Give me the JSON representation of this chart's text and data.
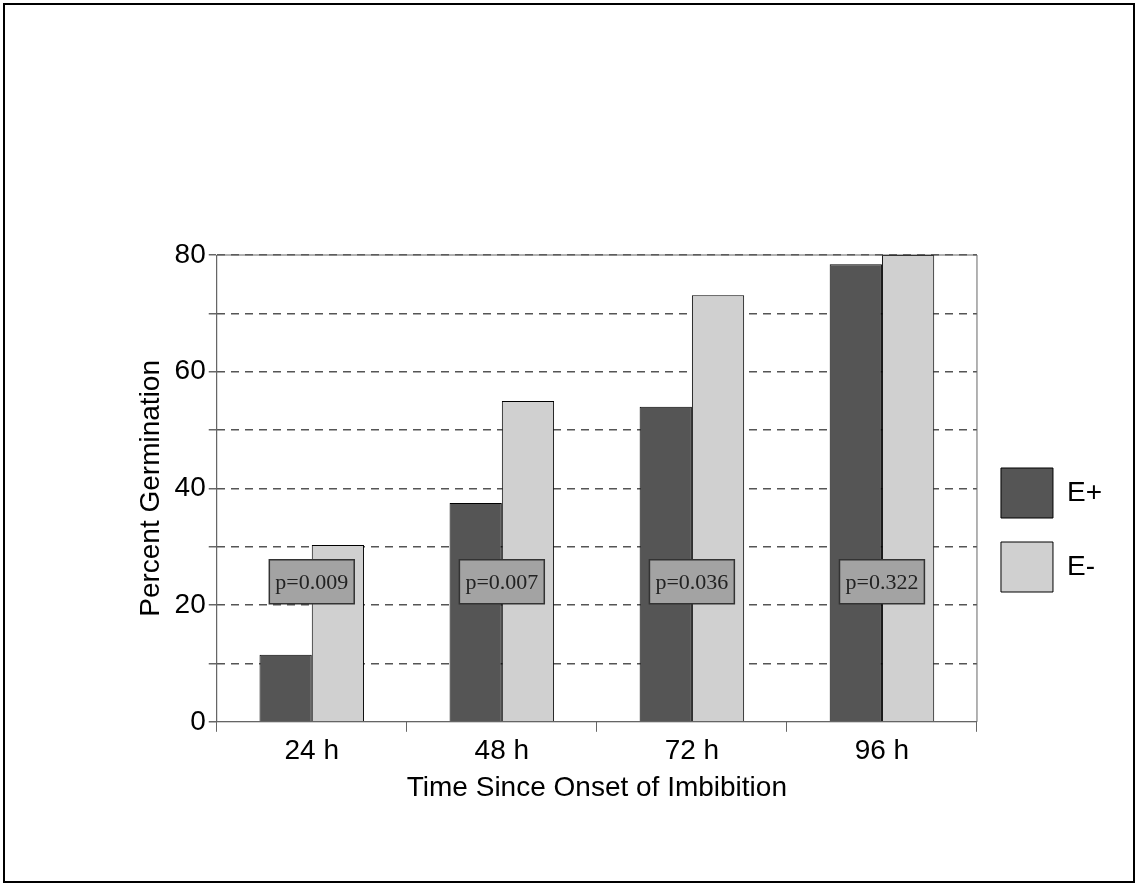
{
  "chart_data": {
    "type": "bar",
    "xlabel": "Time Since Onset of Imbibition",
    "ylabel": "Percent Germination",
    "categories": [
      "24 h",
      "48 h",
      "72 h",
      "96 h"
    ],
    "series": [
      {
        "name": "E+",
        "color": "#555555",
        "values": [
          11.5,
          37.5,
          54,
          78.4
        ]
      },
      {
        "name": "E-",
        "color": "#d0d0d0",
        "values": [
          30.3,
          55,
          73.1,
          80
        ]
      }
    ],
    "ylim": [
      0,
      80
    ],
    "yticks": [
      0,
      {
        "value": 10,
        "label": null
      },
      20,
      {
        "value": 30,
        "label": null
      },
      40,
      {
        "value": 50,
        "label": null
      },
      60,
      {
        "value": 70,
        "label": null
      },
      80
    ],
    "grid": "y",
    "legend": "right",
    "annotations": [
      {
        "text": "p=0.009",
        "x": "24 h",
        "y": 24
      },
      {
        "text": "p=0.007",
        "x": "48 h",
        "y": 24
      },
      {
        "text": "p=0.036",
        "x": "72 h",
        "y": 24
      },
      {
        "text": "p=0.322",
        "x": "96 h",
        "y": 24
      }
    ]
  }
}
